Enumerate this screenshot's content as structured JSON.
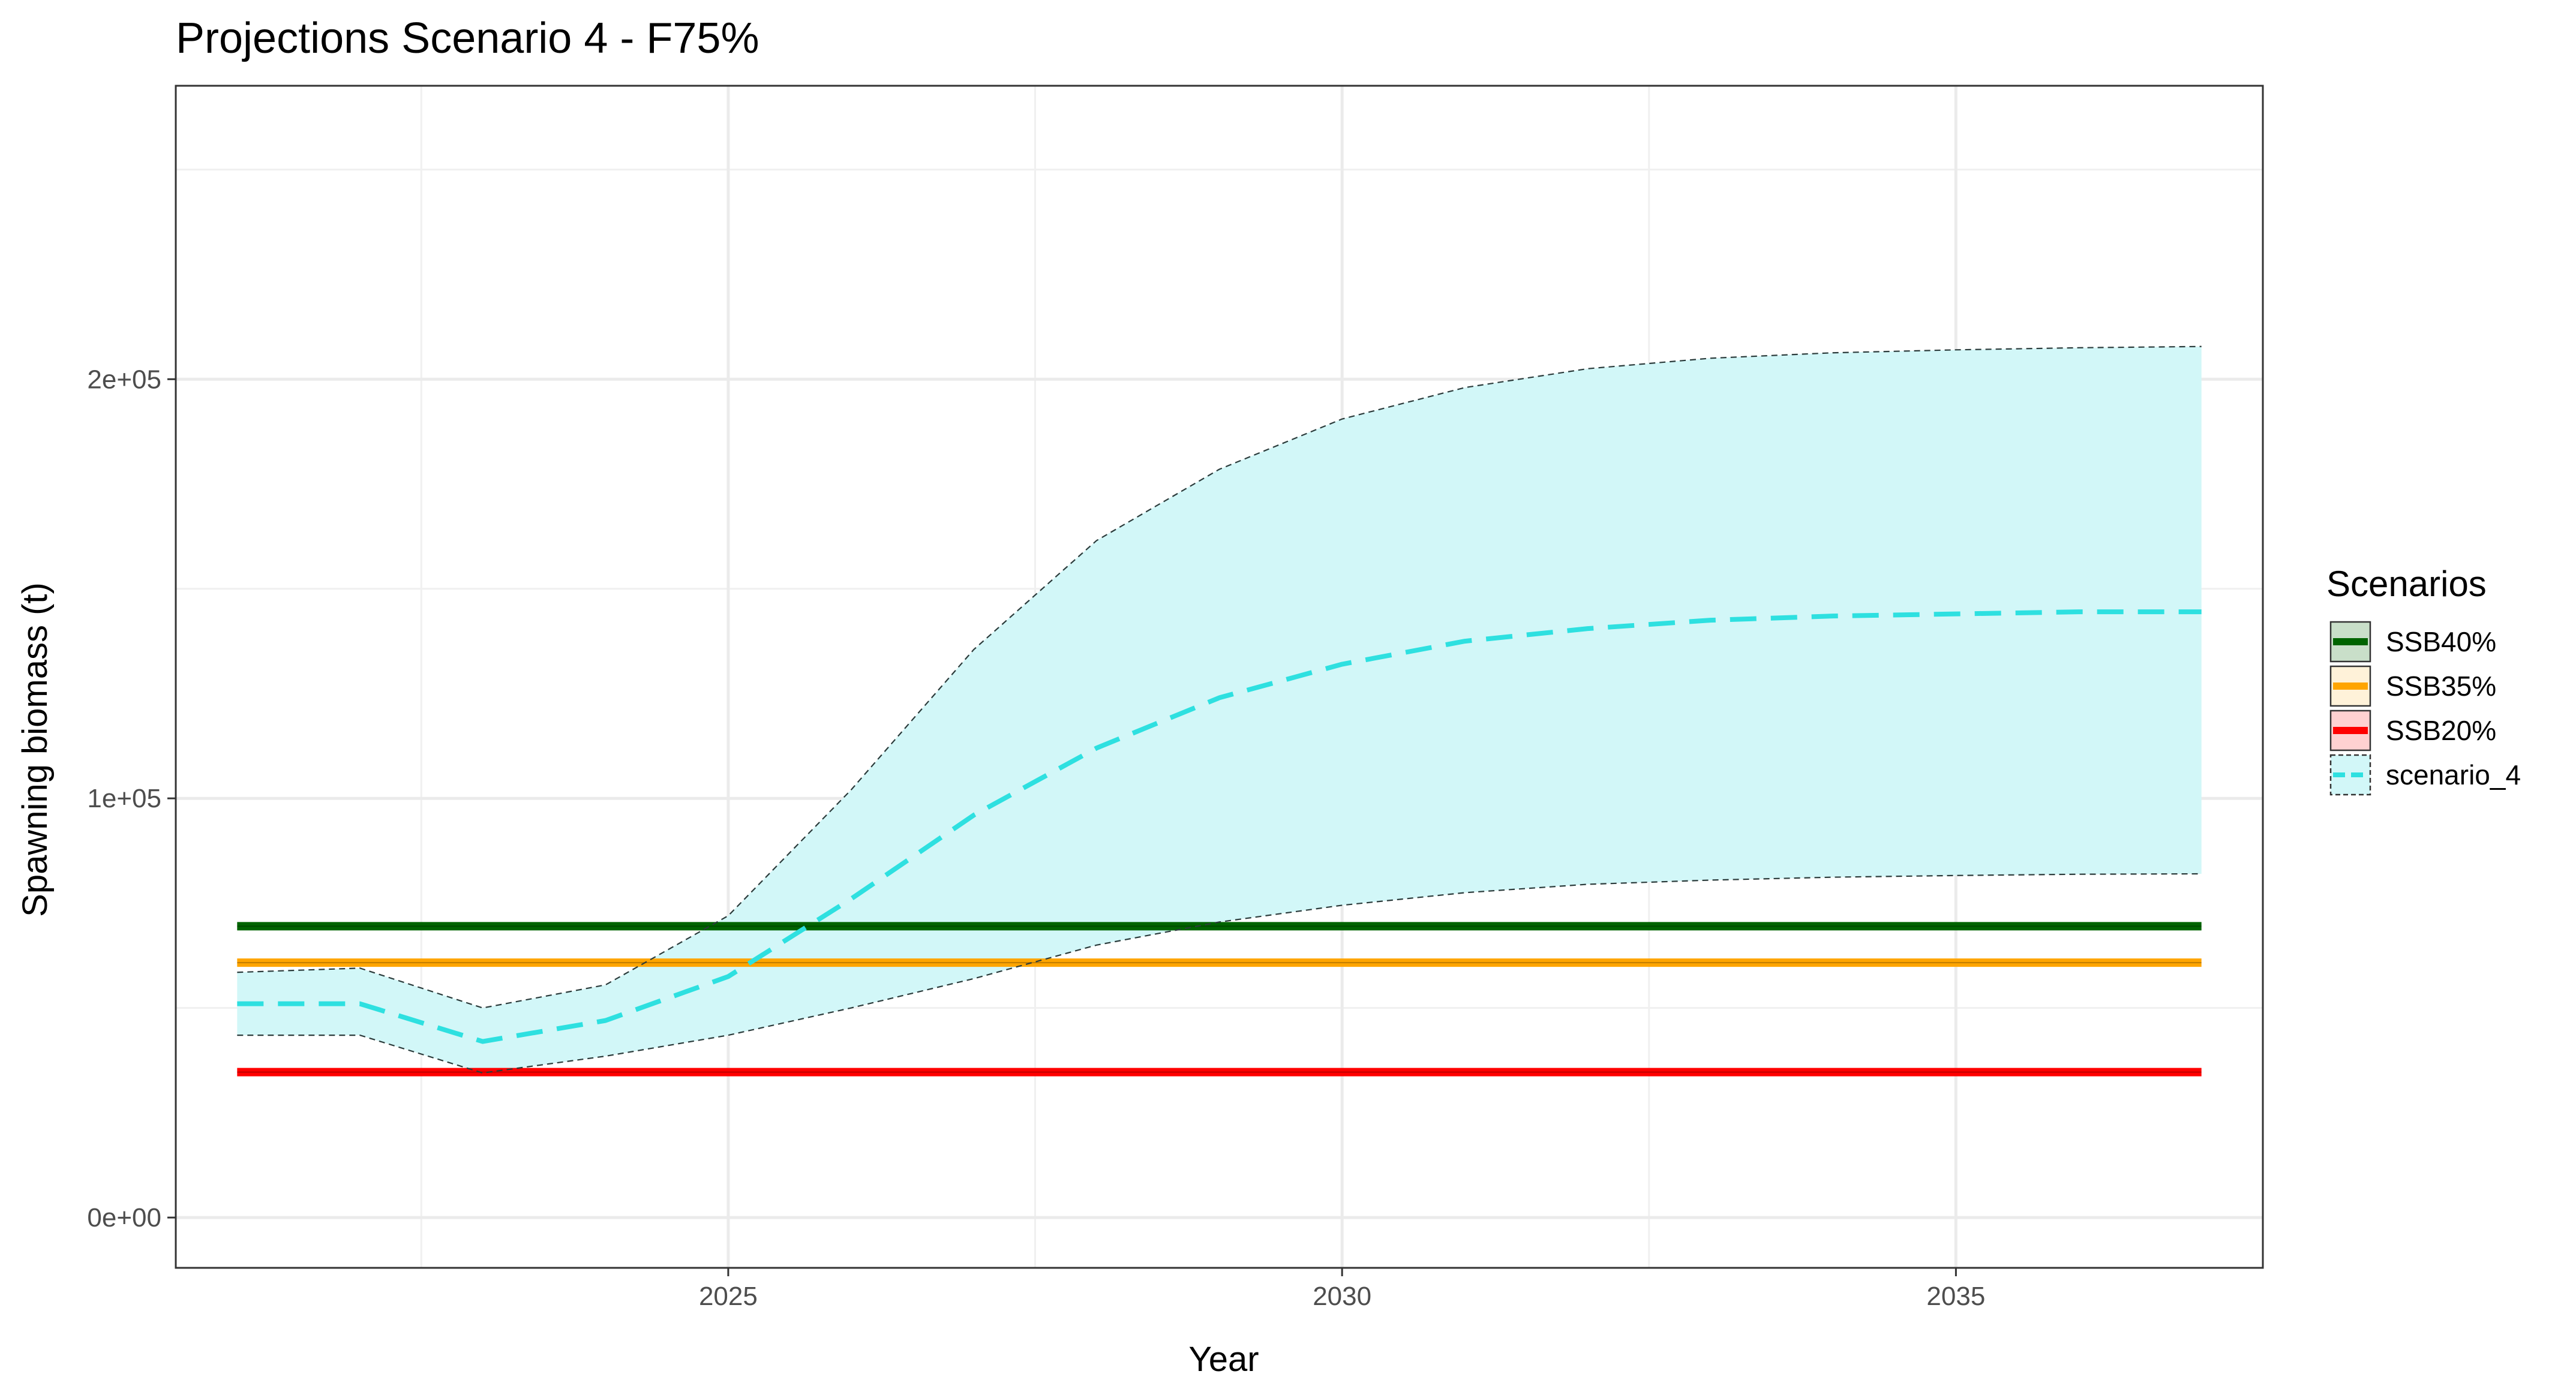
{
  "chart_data": {
    "type": "line",
    "title": "Projections Scenario 4 - F75%",
    "xlabel": "Year",
    "ylabel": "Spawning biomass (t)",
    "xlim": [
      2020.5,
      2037.5
    ],
    "ylim": [
      -12000,
      270000
    ],
    "x_ticks": [
      2025,
      2030,
      2035
    ],
    "x_tick_labels": [
      "2025",
      "2030",
      "2035"
    ],
    "y_ticks": [
      0,
      100000,
      200000
    ],
    "y_tick_labels": [
      "0e+00",
      "1e+05",
      "2e+05"
    ],
    "grid": true,
    "legend": {
      "title": "Scenarios",
      "position": "right",
      "entries": [
        "SSB40%",
        "SSB35%",
        "SSB20%",
        "scenario_4"
      ]
    },
    "reference_lines": [
      {
        "name": "SSB40%",
        "y": 69500,
        "color": "#006400"
      },
      {
        "name": "SSB35%",
        "y": 60800,
        "color": "#FFA500"
      },
      {
        "name": "SSB20%",
        "y": 34700,
        "color": "#FF0000"
      }
    ],
    "series": [
      {
        "name": "scenario_4",
        "color": "#2EE0E0",
        "band_color": "#D2F7F8",
        "x": [
          2021,
          2022,
          2023,
          2024,
          2025,
          2026,
          2027,
          2028,
          2029,
          2030,
          2031,
          2032,
          2033,
          2034,
          2035,
          2036,
          2037
        ],
        "values": [
          51000,
          51000,
          42000,
          47000,
          57500,
          76000,
          96000,
          112000,
          124000,
          132000,
          137500,
          140500,
          142500,
          143500,
          144000,
          144500,
          144500
        ],
        "lower": [
          43500,
          43500,
          34500,
          38500,
          43500,
          50000,
          57000,
          65000,
          70500,
          74500,
          77500,
          79500,
          80500,
          81200,
          81600,
          81900,
          82000
        ],
        "upper": [
          58500,
          59500,
          50000,
          55500,
          72000,
          102000,
          135500,
          161500,
          178500,
          190500,
          198000,
          202500,
          205000,
          206300,
          207000,
          207500,
          207800
        ]
      }
    ]
  }
}
